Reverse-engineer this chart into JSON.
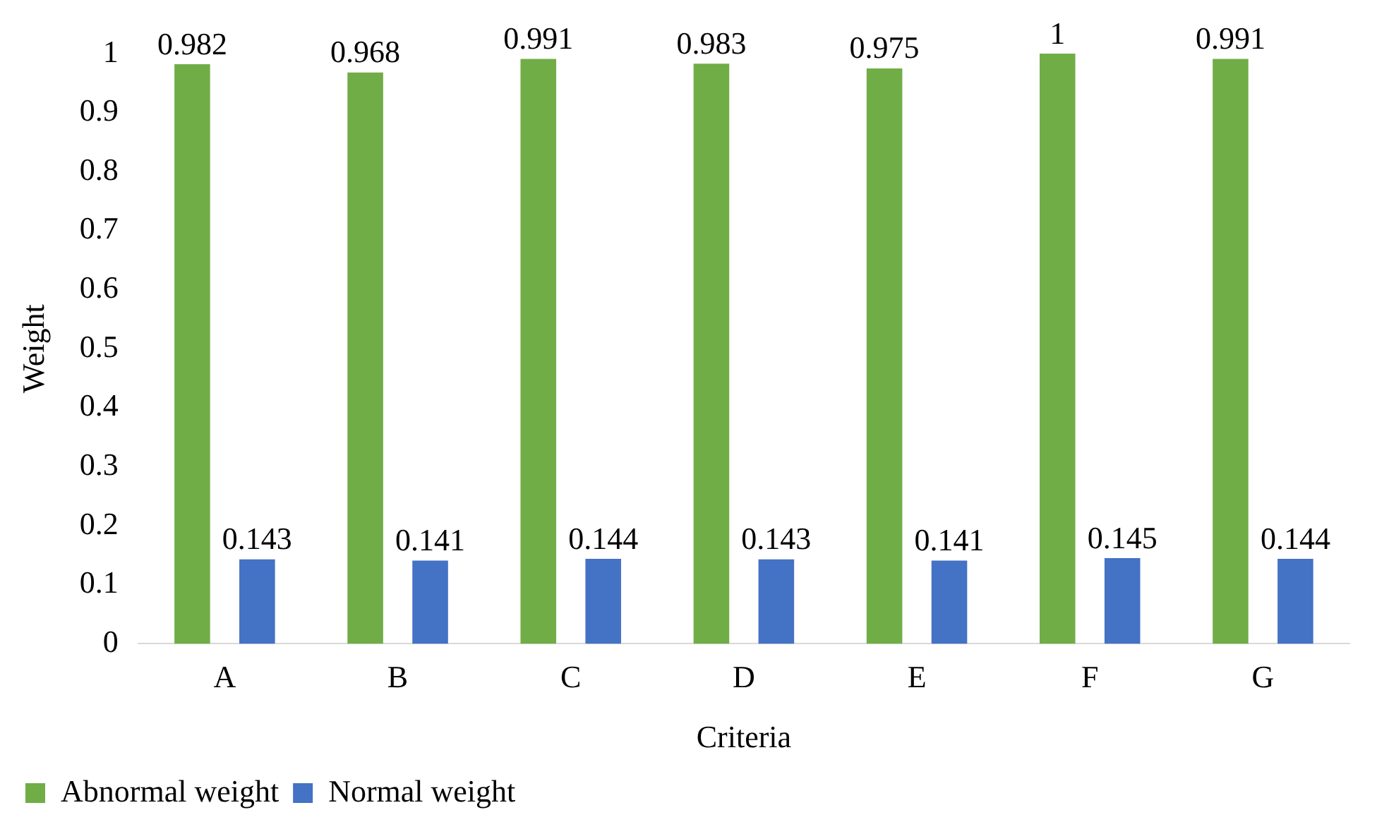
{
  "chart_data": {
    "type": "bar",
    "xlabel": "Criteria",
    "ylabel": "Weight",
    "categories": [
      "A",
      "B",
      "C",
      "D",
      "E",
      "F",
      "G"
    ],
    "series": [
      {
        "name": "Abnormal weight",
        "color": "#70ad47",
        "values": [
          0.982,
          0.968,
          0.991,
          0.983,
          0.975,
          1,
          0.991
        ]
      },
      {
        "name": "Normal weight",
        "color": "#4472c4",
        "values": [
          0.143,
          0.141,
          0.144,
          0.143,
          0.141,
          0.145,
          0.144
        ]
      }
    ],
    "ylim": [
      0,
      1
    ],
    "yticks": [
      0,
      0.1,
      0.2,
      0.3,
      0.4,
      0.5,
      0.6,
      0.7,
      0.8,
      0.9,
      1
    ],
    "grid": false,
    "legend": "bottom left",
    "data_labels": true
  }
}
